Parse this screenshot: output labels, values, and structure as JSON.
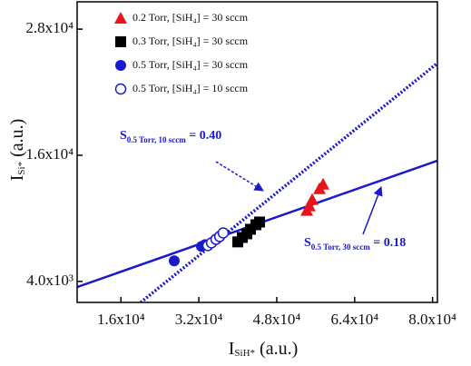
{
  "chart_data": {
    "type": "scatter",
    "x_label": {
      "text": "I",
      "sub": "SiH*",
      "suffix": " (a.u.)"
    },
    "y_label": {
      "text": "I",
      "sub": "Si*",
      "suffix": " (a.u.)"
    },
    "xlim": [
      7000,
      81000
    ],
    "ylim": [
      2000,
      30600
    ],
    "xticks": [
      {
        "value": 16000,
        "label": "1.6x10⁴"
      },
      {
        "value": 32000,
        "label": "3.2x10⁴"
      },
      {
        "value": 48000,
        "label": "4.8x10⁴"
      },
      {
        "value": 64000,
        "label": "6.4x10⁴"
      },
      {
        "value": 80000,
        "label": "8.0x10⁴"
      }
    ],
    "yticks": [
      {
        "value": 4000,
        "label": "4.0x10³"
      },
      {
        "value": 16000,
        "label": "1.6x10⁴"
      },
      {
        "value": 28000,
        "label": "2.8x10⁴"
      }
    ],
    "legend": "upper left",
    "series": [
      {
        "name": "0.2 Torr,  [SiH₄] = 30 sccm",
        "color": "#e8141c",
        "marker": "triangle",
        "x": [
          54160,
          54700,
          55280,
          56770,
          57510
        ],
        "values": [
          10760,
          11190,
          11800,
          12820,
          13250
        ]
      },
      {
        "name": "0.3 Torr,  [SiH₄] = 30 sccm",
        "color": "#000000",
        "marker": "square",
        "x": [
          40000,
          40930,
          41860,
          42600,
          43720,
          44470
        ],
        "values": [
          7760,
          8180,
          8530,
          8960,
          9390,
          9650
        ]
      },
      {
        "name": "0.5 Torr,  [SiH₄] = 30 sccm",
        "color": "#1a1acc",
        "marker": "circle",
        "x": [
          26940,
          32540,
          33280
        ],
        "values": [
          5950,
          7330,
          7500
        ]
      },
      {
        "name": "0.5 Torr,  [SiH₄] = 10 sccm",
        "color": "#1a1acc",
        "marker": "open-circle",
        "x": [
          33840,
          34590,
          35520,
          36270,
          37010
        ],
        "values": [
          7410,
          7670,
          8010,
          8270,
          8610
        ]
      }
    ],
    "fits": [
      {
        "color": "#1a1acc",
        "style": "dotted",
        "x": [
          20050,
          81000
        ],
        "values": [
          2000,
          24760
        ]
      },
      {
        "color": "#1a1acc",
        "style": "solid",
        "x": [
          7000,
          81000
        ],
        "values": [
          3460,
          15490
        ]
      }
    ],
    "annotations": [
      {
        "text": "S",
        "sub": "0.5 Torr, 10 sccm",
        "suffix": " = 0.40"
      },
      {
        "text": "S",
        "sub": "0.5 Torr, 30 sccm",
        "suffix": " = 0.18"
      }
    ]
  }
}
